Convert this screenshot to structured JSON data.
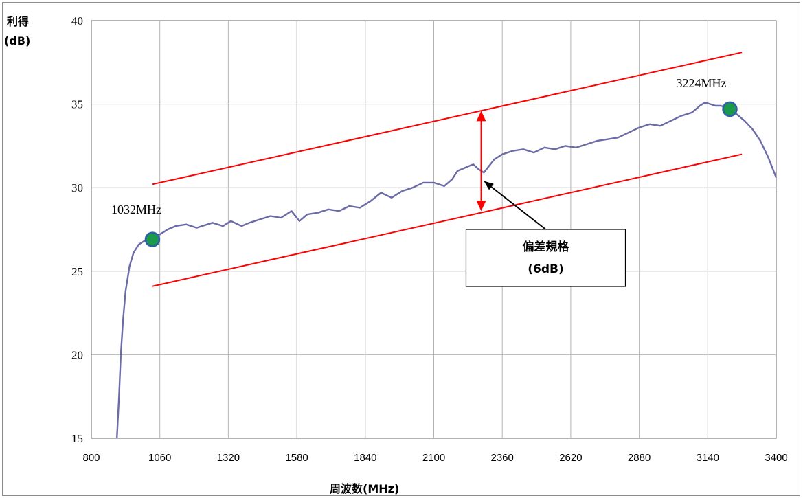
{
  "chart_data": {
    "type": "line",
    "xlabel": "周波数(MHz)",
    "ylabel_line1": "利得",
    "ylabel_line2": "(dB)",
    "xlim": [
      800,
      3400
    ],
    "ylim": [
      15,
      40
    ],
    "xticks": [
      800,
      1060,
      1320,
      1580,
      1840,
      2100,
      2360,
      2620,
      2880,
      3140,
      3400
    ],
    "yticks": [
      15,
      20,
      25,
      30,
      35,
      40
    ],
    "grid": true,
    "colors": {
      "series": "#6b6ba8",
      "limit": "#ff0000",
      "marker_fill": "#1a9a4a",
      "marker_edge": "#2e5fa8",
      "grid": "#b4b4b4"
    },
    "series": [
      {
        "x": [
          897,
          905,
          912,
          920,
          930,
          945,
          960,
          980,
          1000,
          1020,
          1032,
          1045,
          1060,
          1090,
          1120,
          1160,
          1200,
          1240,
          1260,
          1300,
          1330,
          1370,
          1400,
          1440,
          1480,
          1520,
          1560,
          1590,
          1620,
          1660,
          1700,
          1740,
          1780,
          1820,
          1860,
          1900,
          1940,
          1980,
          2020,
          2060,
          2100,
          2140,
          2170,
          2190,
          2220,
          2250,
          2270,
          2290,
          2310,
          2330,
          2360,
          2400,
          2440,
          2480,
          2520,
          2560,
          2600,
          2640,
          2680,
          2720,
          2760,
          2800,
          2840,
          2880,
          2920,
          2960,
          3000,
          3040,
          3080,
          3110,
          3130,
          3150,
          3170,
          3190,
          3210,
          3224,
          3250,
          3280,
          3310,
          3340,
          3370,
          3390,
          3400
        ],
        "y": [
          15.0,
          17.5,
          20.0,
          22.0,
          23.8,
          25.3,
          26.1,
          26.6,
          26.8,
          26.9,
          26.9,
          27.1,
          27.2,
          27.5,
          27.7,
          27.8,
          27.6,
          27.8,
          27.9,
          27.7,
          28.0,
          27.7,
          27.9,
          28.1,
          28.3,
          28.2,
          28.6,
          28.0,
          28.4,
          28.5,
          28.7,
          28.6,
          28.9,
          28.8,
          29.2,
          29.7,
          29.4,
          29.8,
          30.0,
          30.3,
          30.3,
          30.1,
          30.5,
          31.0,
          31.2,
          31.4,
          31.1,
          30.9,
          31.3,
          31.7,
          32.0,
          32.2,
          32.3,
          32.1,
          32.4,
          32.3,
          32.5,
          32.4,
          32.6,
          32.8,
          32.9,
          33.0,
          33.3,
          33.6,
          33.8,
          33.7,
          34.0,
          34.3,
          34.5,
          34.9,
          35.1,
          35.0,
          34.9,
          34.9,
          34.8,
          34.7,
          34.4,
          34.0,
          33.5,
          32.8,
          31.8,
          31.0,
          30.6
        ]
      }
    ],
    "markers": [
      {
        "x": 1032,
        "y": 26.9,
        "label": "1032MHz"
      },
      {
        "x": 3224,
        "y": 34.7,
        "label": "3224MHz"
      }
    ],
    "limit_lines": [
      {
        "x": [
          1032,
          3270
        ],
        "y": [
          30.2,
          38.1
        ]
      },
      {
        "x": [
          1032,
          3270
        ],
        "y": [
          24.1,
          32.0
        ]
      }
    ],
    "arrow": {
      "x": 2280,
      "y_top": 34.6,
      "y_bottom": 28.6
    },
    "callout": {
      "line1": "偏差規格",
      "line2": "(6dB)",
      "pointer_from": {
        "x": 2525,
        "y": 27.5
      },
      "pointer_to": {
        "x": 2290,
        "y": 30.4
      }
    }
  }
}
